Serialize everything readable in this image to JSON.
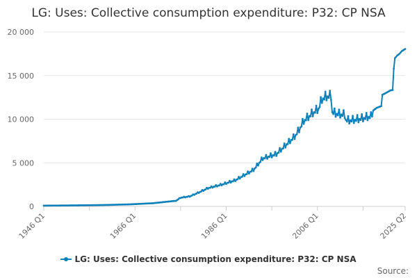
{
  "chart_data": {
    "type": "line",
    "title": "LG: Uses: Collective consumption expenditure: P32: CP NSA",
    "xlabel": "",
    "ylabel": "",
    "x_range": [
      1946.0,
      2025.25
    ],
    "ylim": [
      0,
      20000
    ],
    "y_ticks": [
      "0",
      "5 000",
      "10 000",
      "15 000",
      "20 000"
    ],
    "y_tick_values": [
      0,
      5000,
      10000,
      15000,
      20000
    ],
    "x_ticks": [
      "1946 Q1",
      "1966 Q1",
      "1986 Q1",
      "2006 Q1",
      "2025 Q2"
    ],
    "x_tick_values": [
      1946.0,
      1966.0,
      1986.0,
      2006.0,
      2025.25
    ],
    "grid": true,
    "series": [
      {
        "name": "LG: Uses: Collective consumption expenditure: P32: CP NSA",
        "color": "#0f81b9",
        "anchors": [
          [
            1946.0,
            90
          ],
          [
            1950.0,
            105
          ],
          [
            1955.0,
            130
          ],
          [
            1960.0,
            170
          ],
          [
            1965.0,
            240
          ],
          [
            1970.0,
            370
          ],
          [
            1975.0,
            650
          ],
          [
            1976.0,
            1000
          ],
          [
            1978.0,
            1150
          ],
          [
            1980.0,
            1600
          ],
          [
            1982.0,
            2100
          ],
          [
            1985.0,
            2500
          ],
          [
            1988.0,
            3000
          ],
          [
            1990.0,
            3600
          ],
          [
            1992.0,
            4200
          ],
          [
            1994.0,
            5500
          ],
          [
            1997.0,
            6000
          ],
          [
            1999.0,
            7000
          ],
          [
            2001.0,
            8000
          ],
          [
            2002.0,
            8800
          ],
          [
            2003.0,
            9800
          ],
          [
            2005.0,
            10700
          ],
          [
            2006.25,
            11200
          ],
          [
            2007.0,
            12300
          ],
          [
            2008.0,
            12600
          ],
          [
            2009.0,
            12650
          ],
          [
            2009.25,
            10800
          ],
          [
            2010.0,
            10650
          ],
          [
            2011.0,
            10550
          ],
          [
            2012.0,
            10500
          ],
          [
            2012.25,
            9900
          ],
          [
            2013.0,
            9850
          ],
          [
            2014.0,
            9900
          ],
          [
            2015.0,
            10000
          ],
          [
            2016.0,
            10100
          ],
          [
            2017.0,
            10250
          ],
          [
            2018.0,
            10300
          ],
          [
            2018.25,
            11000
          ],
          [
            2019.0,
            11300
          ],
          [
            2020.0,
            11500
          ],
          [
            2020.25,
            12800
          ],
          [
            2021.0,
            13000
          ],
          [
            2022.0,
            13300
          ],
          [
            2022.5,
            13350
          ],
          [
            2022.75,
            15800
          ],
          [
            2023.0,
            17000
          ],
          [
            2023.5,
            17300
          ],
          [
            2024.0,
            17500
          ],
          [
            2024.5,
            17800
          ],
          [
            2025.25,
            18050
          ]
        ]
      }
    ],
    "legend_label": "LG: Uses: Collective consumption expenditure: P32: CP NSA",
    "source_label": "Source:"
  }
}
